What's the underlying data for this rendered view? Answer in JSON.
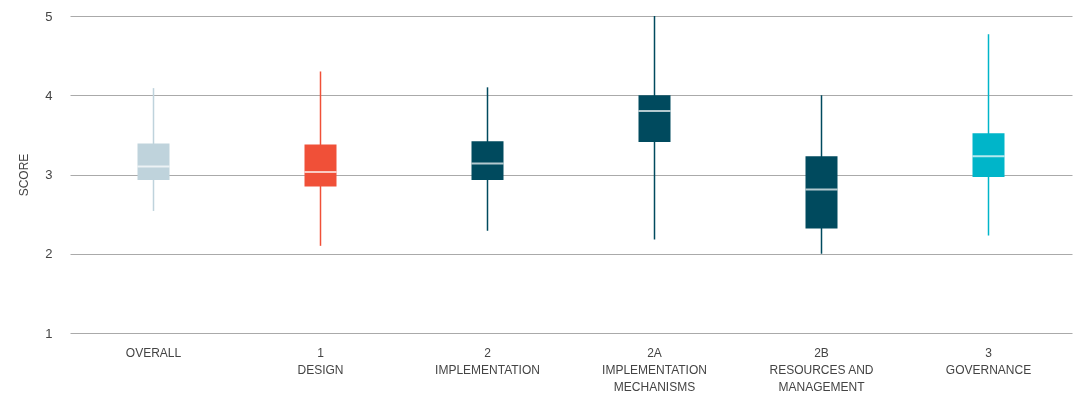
{
  "chart_data": {
    "type": "box",
    "ylabel": "SCORE",
    "categories": [
      "OVERALL",
      "1\nDESIGN",
      "2\nIMPLEMENTATION",
      "2A\nIMPLEMENTATION\nMECHANISMS",
      "2B\nRESOURCES AND\nMANAGEMENT",
      "3\nGOVERNANCE"
    ],
    "boxes": [
      {
        "low": 2.54,
        "q1": 2.93,
        "median": 3.1,
        "q3": 3.39,
        "high": 4.09
      },
      {
        "low": 2.1,
        "q1": 2.85,
        "median": 3.03,
        "q3": 3.38,
        "high": 4.3
      },
      {
        "low": 2.29,
        "q1": 2.93,
        "median": 3.14,
        "q3": 3.42,
        "high": 4.1
      },
      {
        "low": 2.18,
        "q1": 3.41,
        "median": 3.8,
        "q3": 4.0,
        "high": 5.0
      },
      {
        "low": 2.0,
        "q1": 2.32,
        "median": 2.81,
        "q3": 3.23,
        "high": 4.0
      },
      {
        "low": 2.23,
        "q1": 2.97,
        "median": 3.23,
        "q3": 3.52,
        "high": 4.77
      }
    ],
    "colors": [
      "#bfd3dc",
      "#f05038",
      "#004a5e",
      "#004a5e",
      "#004a5e",
      "#00b5c9"
    ],
    "ylim": [
      1,
      5
    ],
    "yticks": [
      1,
      2,
      3,
      4,
      5
    ],
    "grid": "y"
  }
}
